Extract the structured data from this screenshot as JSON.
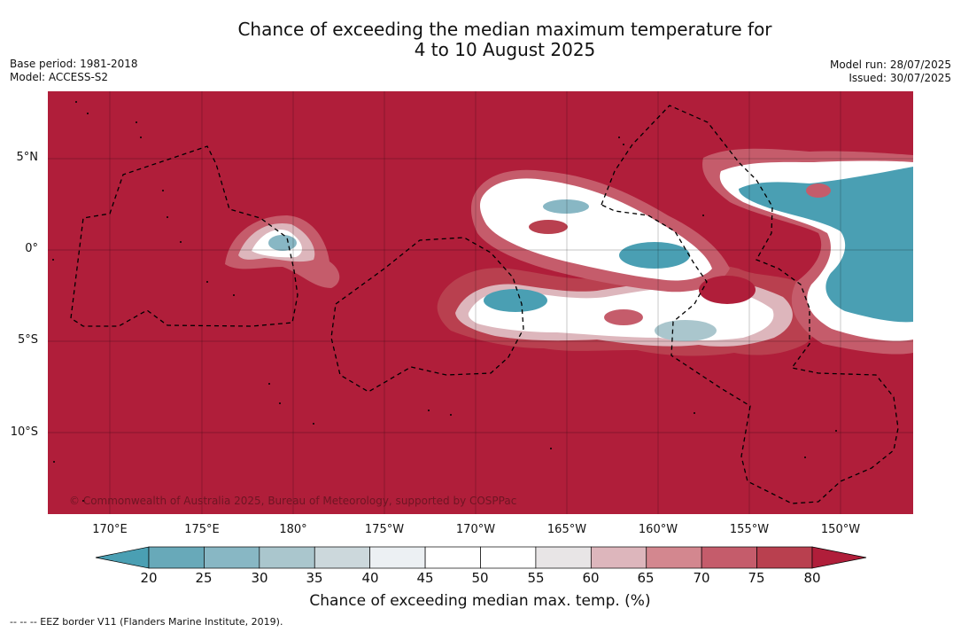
{
  "title": {
    "line1": "Chance of exceeding the median maximum temperature for",
    "line2": "4 to 10 August 2025"
  },
  "meta_left": {
    "base_period": "Base period: 1981-2018",
    "model": "Model: ACCESS-S2"
  },
  "meta_right": {
    "model_run": "Model run: 28/07/2025",
    "issued": "Issued: 30/07/2025"
  },
  "map": {
    "lat_labels": [
      "5°N",
      "0°",
      "5°S",
      "10°S"
    ],
    "lon_labels": [
      "170°E",
      "175°E",
      "180°",
      "175°W",
      "170°W",
      "165°W",
      "160°W",
      "155°W",
      "150°W"
    ],
    "copyright": "© Commonwealth of Australia 2025, Bureau of Meteorology, supported by COSPPac",
    "background_color": "#b01e3a"
  },
  "colorbar": {
    "ticks": [
      "20",
      "25",
      "30",
      "35",
      "40",
      "45",
      "50",
      "55",
      "60",
      "65",
      "70",
      "75",
      "80"
    ],
    "colors": [
      "#4a9fb3",
      "#68a9b9",
      "#88b7c4",
      "#aac6cd",
      "#ccd8dc",
      "#ecf0f3",
      "#ffffff",
      "#ffffff",
      "#e8e5e6",
      "#ddb6bc",
      "#d3878f",
      "#c55c6b",
      "#b9404f",
      "#b01e3a"
    ],
    "label": "Chance of exceeding median max. temp. (%)"
  },
  "footnote": "--  --  -- EEZ border V11 (Flanders Marine Institute, 2019)."
}
